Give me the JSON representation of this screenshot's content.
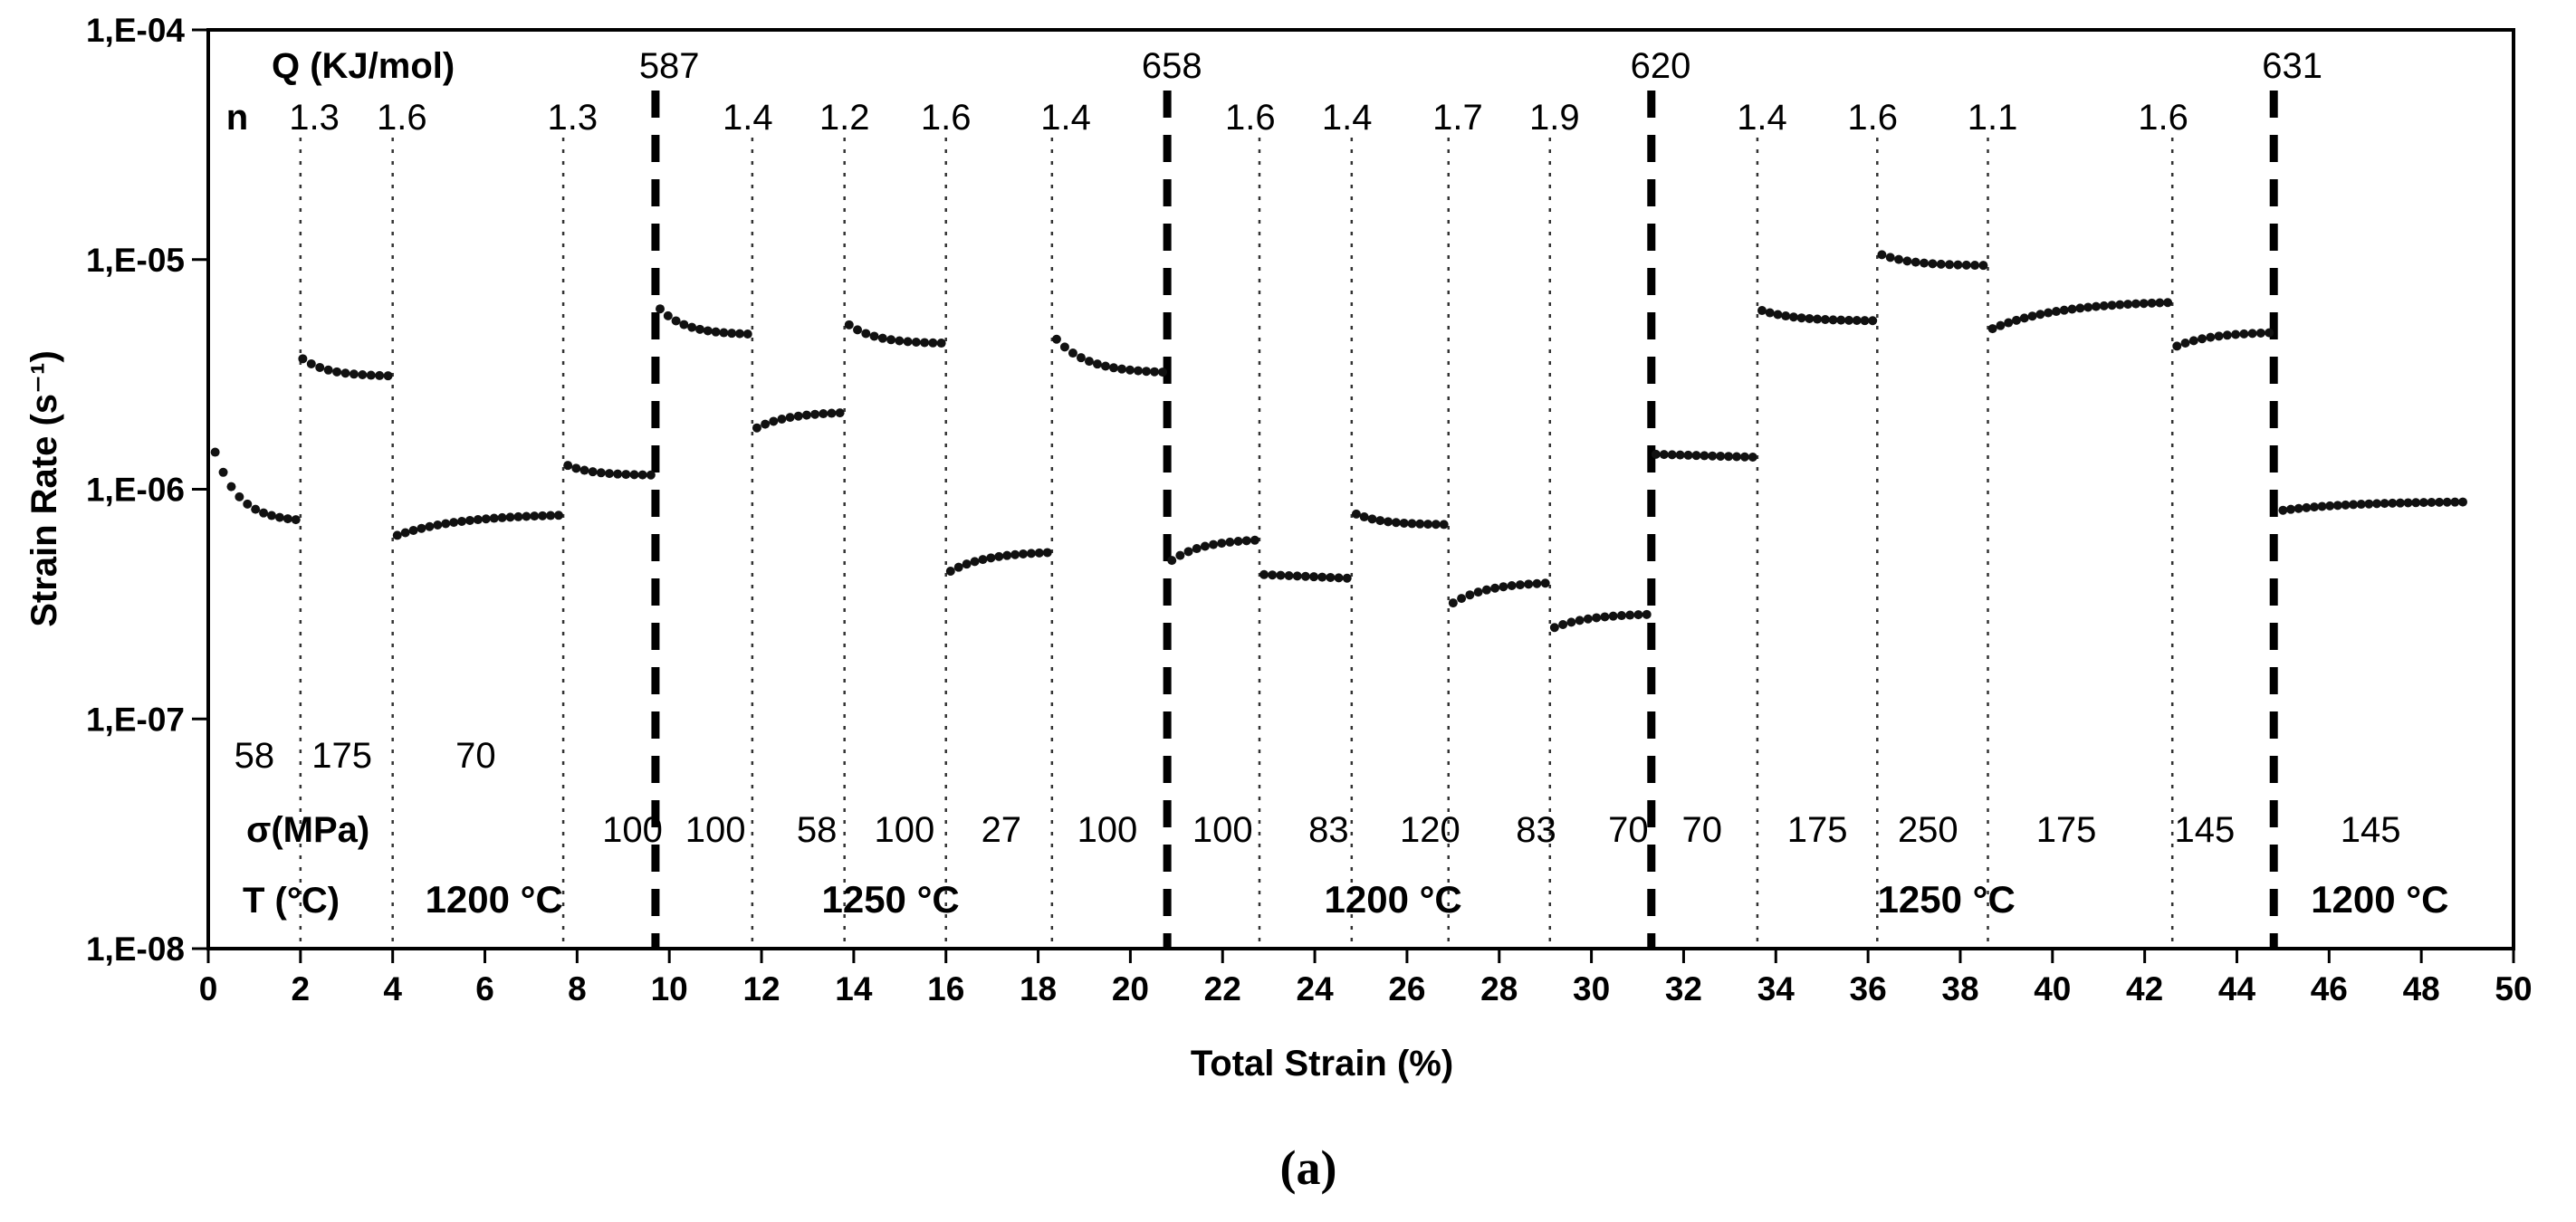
{
  "caption": "(a)",
  "chart_data": {
    "type": "scatter",
    "title": "",
    "xlabel": "Total Strain (%)",
    "ylabel": "Strain Rate (s⁻¹)",
    "xlim": [
      0,
      50
    ],
    "ylim": [
      1e-08,
      0.0001
    ],
    "grid": false,
    "legend": "none",
    "x_ticks": [
      0,
      2,
      4,
      6,
      8,
      10,
      12,
      14,
      16,
      18,
      20,
      22,
      24,
      26,
      28,
      30,
      32,
      34,
      36,
      38,
      40,
      42,
      44,
      46,
      48,
      50
    ],
    "y_ticks": [
      {
        "label": "1,E-04",
        "value": 0.0001
      },
      {
        "label": "1,E-05",
        "value": 1e-05
      },
      {
        "label": "1,E-06",
        "value": 1e-06
      },
      {
        "label": "1,E-07",
        "value": 1e-07
      },
      {
        "label": "1,E-08",
        "value": 1e-08
      }
    ],
    "headers": {
      "q": "Q (KJ/mol)",
      "n": "n",
      "sigma": "σ(MPa)",
      "temperature": "T (°C)"
    },
    "q_boundaries": [
      {
        "x": 9.7,
        "label": "587",
        "label_x": 10.0
      },
      {
        "x": 20.8,
        "label": "658",
        "label_x": 20.9
      },
      {
        "x": 31.3,
        "label": "620",
        "label_x": 31.5
      },
      {
        "x": 44.8,
        "label": "631",
        "label_x": 45.2
      }
    ],
    "segment_boundaries_x": [
      2.0,
      4.0,
      7.7,
      11.8,
      13.8,
      16.0,
      18.3,
      22.8,
      24.8,
      26.9,
      29.1,
      33.6,
      36.2,
      38.6,
      42.6
    ],
    "n_values": [
      {
        "x": 2.3,
        "label": "1.3"
      },
      {
        "x": 4.2,
        "label": "1.6"
      },
      {
        "x": 7.9,
        "label": "1.3"
      },
      {
        "x": 11.7,
        "label": "1.4"
      },
      {
        "x": 13.8,
        "label": "1.2"
      },
      {
        "x": 16.0,
        "label": "1.6"
      },
      {
        "x": 18.6,
        "label": "1.4"
      },
      {
        "x": 22.6,
        "label": "1.6"
      },
      {
        "x": 24.7,
        "label": "1.4"
      },
      {
        "x": 27.1,
        "label": "1.7"
      },
      {
        "x": 29.2,
        "label": "1.9"
      },
      {
        "x": 33.7,
        "label": "1.4"
      },
      {
        "x": 36.1,
        "label": "1.6"
      },
      {
        "x": 38.7,
        "label": "1.1"
      },
      {
        "x": 42.4,
        "label": "1.6"
      }
    ],
    "sigma_values_upper": [
      {
        "x": 1.0,
        "label": "58"
      },
      {
        "x": 2.9,
        "label": "175"
      },
      {
        "x": 5.8,
        "label": "70"
      }
    ],
    "sigma_values": [
      {
        "x": 9.2,
        "label": "100"
      },
      {
        "x": 11.0,
        "label": "100"
      },
      {
        "x": 13.2,
        "label": "58"
      },
      {
        "x": 15.1,
        "label": "100"
      },
      {
        "x": 17.2,
        "label": "27"
      },
      {
        "x": 19.5,
        "label": "100"
      },
      {
        "x": 22.0,
        "label": "100"
      },
      {
        "x": 24.3,
        "label": "83"
      },
      {
        "x": 26.5,
        "label": "120"
      },
      {
        "x": 28.8,
        "label": "83"
      },
      {
        "x": 30.8,
        "label": "70"
      },
      {
        "x": 32.4,
        "label": "70"
      },
      {
        "x": 34.9,
        "label": "175"
      },
      {
        "x": 37.3,
        "label": "250"
      },
      {
        "x": 40.3,
        "label": "175"
      },
      {
        "x": 43.3,
        "label": "145"
      },
      {
        "x": 46.9,
        "label": "145"
      }
    ],
    "temperatures": [
      {
        "x": 6.2,
        "label": "1200 °C"
      },
      {
        "x": 14.8,
        "label": "1250 °C"
      },
      {
        "x": 25.7,
        "label": "1200 °C"
      },
      {
        "x": 37.7,
        "label": "1250 °C"
      },
      {
        "x": 47.1,
        "label": "1200 °C"
      }
    ],
    "series": [
      {
        "x0": 0.15,
        "x1": 1.9,
        "v0": 1.45e-06,
        "v1": 7.2e-07,
        "trend": "decay",
        "sigma": "58",
        "temperature": "1200 °C"
      },
      {
        "x0": 2.05,
        "x1": 3.9,
        "v0": 3.7e-06,
        "v1": 3.1e-06,
        "trend": "decay",
        "sigma": "175",
        "temperature": "1200 °C"
      },
      {
        "x0": 4.1,
        "x1": 7.6,
        "v0": 6.3e-07,
        "v1": 7.7e-07,
        "trend": "rise",
        "sigma": "70",
        "temperature": "1200 °C"
      },
      {
        "x0": 7.8,
        "x1": 9.6,
        "v0": 1.27e-06,
        "v1": 1.15e-06,
        "trend": "decay",
        "sigma": "100",
        "temperature": "1200 °C"
      },
      {
        "x0": 9.8,
        "x1": 11.7,
        "v0": 6.1e-06,
        "v1": 4.7e-06,
        "trend": "decay",
        "sigma": "100",
        "temperature": "1250 °C"
      },
      {
        "x0": 11.9,
        "x1": 13.7,
        "v0": 1.85e-06,
        "v1": 2.15e-06,
        "trend": "rise",
        "sigma": "58",
        "temperature": "1250 °C"
      },
      {
        "x0": 13.9,
        "x1": 15.9,
        "v0": 5.2e-06,
        "v1": 4.3e-06,
        "trend": "decay",
        "sigma": "100",
        "temperature": "1250 °C"
      },
      {
        "x0": 16.1,
        "x1": 18.2,
        "v0": 4.4e-07,
        "v1": 5.3e-07,
        "trend": "rise",
        "sigma": "27",
        "temperature": "1250 °C"
      },
      {
        "x0": 18.4,
        "x1": 20.7,
        "v0": 4.5e-06,
        "v1": 3.2e-06,
        "trend": "decay",
        "sigma": "100",
        "temperature": "1250 °C"
      },
      {
        "x0": 20.9,
        "x1": 22.7,
        "v0": 4.9e-07,
        "v1": 6e-07,
        "trend": "rise",
        "sigma": "100",
        "temperature": "1200 °C"
      },
      {
        "x0": 22.9,
        "x1": 24.7,
        "v0": 4.25e-07,
        "v1": 4.1e-07,
        "trend": "flat",
        "sigma": "83",
        "temperature": "1200 °C"
      },
      {
        "x0": 24.9,
        "x1": 26.8,
        "v0": 7.8e-07,
        "v1": 7e-07,
        "trend": "decay",
        "sigma": "120",
        "temperature": "1200 °C"
      },
      {
        "x0": 27.0,
        "x1": 29.0,
        "v0": 3.2e-07,
        "v1": 3.9e-07,
        "trend": "rise",
        "sigma": "83",
        "temperature": "1200 °C"
      },
      {
        "x0": 29.2,
        "x1": 31.2,
        "v0": 2.5e-07,
        "v1": 2.85e-07,
        "trend": "rise",
        "sigma": "70",
        "temperature": "1200 °C"
      },
      {
        "x0": 31.4,
        "x1": 33.5,
        "v0": 1.42e-06,
        "v1": 1.38e-06,
        "trend": "flat",
        "sigma": "70",
        "temperature": "1250 °C"
      },
      {
        "x0": 33.7,
        "x1": 36.1,
        "v0": 6e-06,
        "v1": 5.4e-06,
        "trend": "decay",
        "sigma": "175",
        "temperature": "1250 °C"
      },
      {
        "x0": 36.3,
        "x1": 38.5,
        "v0": 1.05e-05,
        "v1": 9.4e-06,
        "trend": "decay",
        "sigma": "250",
        "temperature": "1250 °C"
      },
      {
        "x0": 38.7,
        "x1": 42.5,
        "v0": 5e-06,
        "v1": 6.5e-06,
        "trend": "rise",
        "sigma": "175",
        "temperature": "1250 °C"
      },
      {
        "x0": 42.7,
        "x1": 44.7,
        "v0": 4.2e-06,
        "v1": 4.8e-06,
        "trend": "rise",
        "sigma": "145",
        "temperature": "1250 °C"
      },
      {
        "x0": 45.0,
        "x1": 48.9,
        "v0": 8.1e-07,
        "v1": 8.8e-07,
        "trend": "rise",
        "sigma": "145",
        "temperature": "1200 °C"
      }
    ]
  }
}
